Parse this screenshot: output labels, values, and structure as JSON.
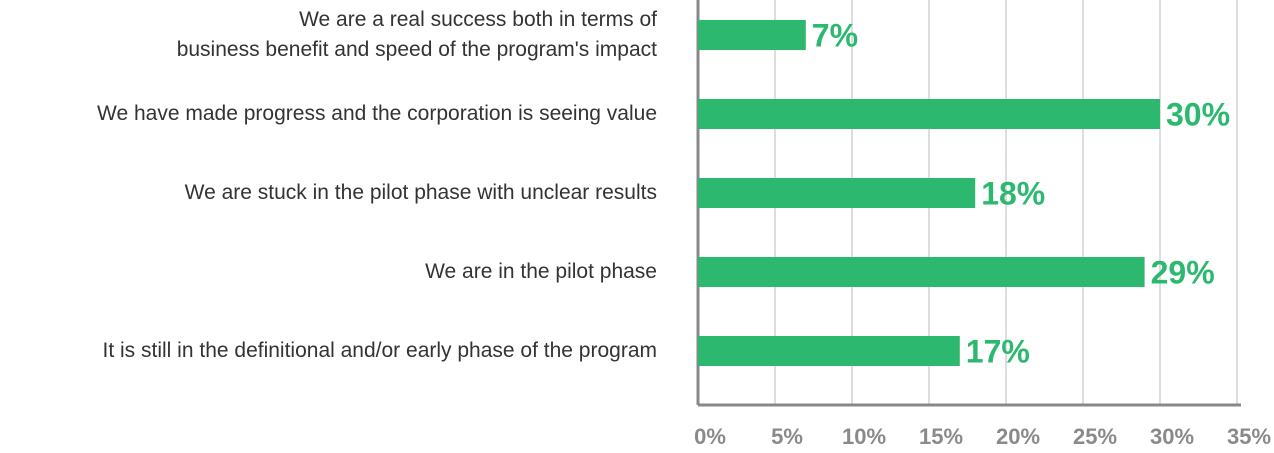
{
  "chart_data": {
    "type": "barh",
    "categories": [
      "We are a real success both in terms of\nbusiness benefit and speed of the program's impact",
      "We have made progress and the corporation is seeing value",
      "We are stuck in the pilot phase with unclear results",
      "We are in the pilot phase",
      "It is still in the definitional and/or early phase of the program"
    ],
    "values": [
      7,
      30,
      18,
      29,
      17
    ],
    "value_labels": [
      "7%",
      "30%",
      "18%",
      "29%",
      "17%"
    ],
    "color": "#2db870",
    "xlim": [
      0,
      35
    ],
    "xticks": [
      {
        "value": 0,
        "label": "0%"
      },
      {
        "value": 5,
        "label": "5%"
      },
      {
        "value": 10,
        "label": "10%"
      },
      {
        "value": 15,
        "label": "15%"
      },
      {
        "value": 20,
        "label": "20%"
      },
      {
        "value": 25,
        "label": "25%"
      },
      {
        "value": 30,
        "label": "30%"
      },
      {
        "value": 35,
        "label": "35%"
      }
    ],
    "grid": true
  }
}
